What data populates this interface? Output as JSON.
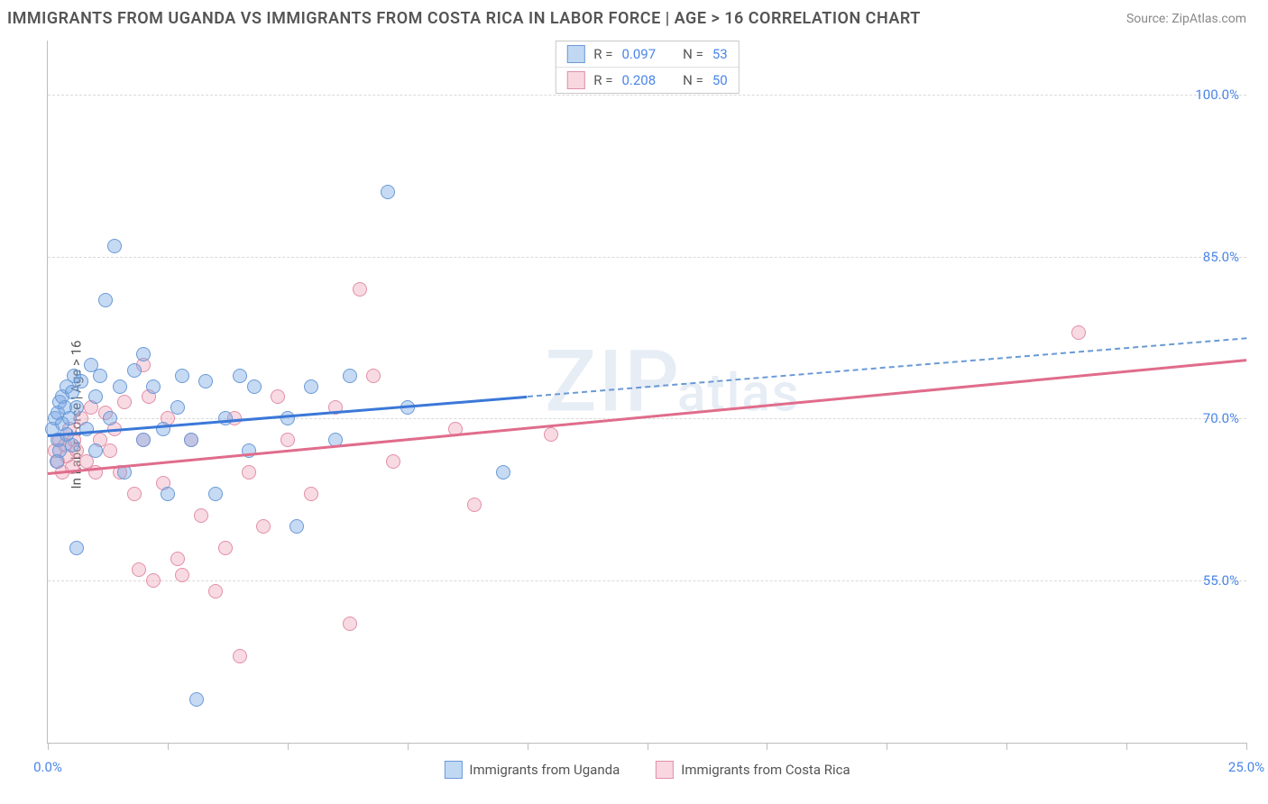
{
  "header": {
    "title": "IMMIGRANTS FROM UGANDA VS IMMIGRANTS FROM COSTA RICA IN LABOR FORCE | AGE > 16 CORRELATION CHART",
    "source": "Source: ZipAtlas.com"
  },
  "chart": {
    "type": "scatter",
    "ylabel": "In Labor Force | Age > 16",
    "watermark": "ZIPatlas",
    "background_color": "#ffffff",
    "grid_color": "#d9d9d9",
    "axis_color": "#bdbdbd",
    "label_fontsize": 15,
    "title_fontsize": 18,
    "xlim": [
      0,
      25
    ],
    "ylim": [
      40,
      105
    ],
    "xticks": [
      0,
      2.5,
      5,
      7.5,
      10,
      12.5,
      15,
      17.5,
      20,
      22.5,
      25
    ],
    "xticks_labeled": {
      "0": "0.0%",
      "25": "25.0%"
    },
    "yticks": [
      55,
      70,
      85,
      100
    ],
    "ytick_labels": [
      "55.0%",
      "70.0%",
      "85.0%",
      "100.0%"
    ],
    "series": {
      "uganda": {
        "label": "Immigrants from Uganda",
        "color_fill": "#76a8e4",
        "color_border": "#6a9ad6",
        "fill_opacity": 0.42,
        "marker_size": 16,
        "r": 0.097,
        "n": 53,
        "trend_color": "#3b78d8",
        "trend_width": 3,
        "trend": {
          "x1": 0,
          "y1": 68.5,
          "x2": 25,
          "y2": 77.5,
          "dash_after_x": 10
        },
        "points": [
          [
            0.1,
            69
          ],
          [
            0.15,
            70
          ],
          [
            0.2,
            68
          ],
          [
            0.2,
            70.5
          ],
          [
            0.25,
            67
          ],
          [
            0.25,
            71.5
          ],
          [
            0.3,
            69.5
          ],
          [
            0.3,
            72
          ],
          [
            0.35,
            71
          ],
          [
            0.4,
            68.5
          ],
          [
            0.4,
            73
          ],
          [
            0.45,
            70
          ],
          [
            0.5,
            67.5
          ],
          [
            0.5,
            72.5
          ],
          [
            0.55,
            74
          ],
          [
            0.6,
            71
          ],
          [
            0.6,
            58
          ],
          [
            0.7,
            73.5
          ],
          [
            0.8,
            69
          ],
          [
            0.9,
            75
          ],
          [
            1.0,
            72
          ],
          [
            1.0,
            67
          ],
          [
            1.1,
            74
          ],
          [
            1.2,
            81
          ],
          [
            1.3,
            70
          ],
          [
            1.4,
            86
          ],
          [
            1.5,
            73
          ],
          [
            1.6,
            65
          ],
          [
            1.8,
            74.5
          ],
          [
            2.0,
            68
          ],
          [
            2.0,
            76
          ],
          [
            2.2,
            73
          ],
          [
            2.4,
            69
          ],
          [
            2.5,
            63
          ],
          [
            2.7,
            71
          ],
          [
            2.8,
            74
          ],
          [
            3.0,
            68
          ],
          [
            3.1,
            44
          ],
          [
            3.3,
            73.5
          ],
          [
            3.5,
            63
          ],
          [
            3.7,
            70
          ],
          [
            4.0,
            74
          ],
          [
            4.2,
            67
          ],
          [
            4.3,
            73
          ],
          [
            5.0,
            70
          ],
          [
            5.2,
            60
          ],
          [
            5.5,
            73
          ],
          [
            6.0,
            68
          ],
          [
            6.3,
            74
          ],
          [
            7.1,
            91
          ],
          [
            7.5,
            71
          ],
          [
            9.5,
            65
          ],
          [
            0.18,
            66
          ]
        ]
      },
      "costarica": {
        "label": "Immigrants from Costa Rica",
        "color_fill": "#efa6bc",
        "color_border": "#e18fa8",
        "fill_opacity": 0.42,
        "marker_size": 16,
        "r": 0.208,
        "n": 50,
        "trend_color": "#e06c8b",
        "trend_width": 3,
        "trend": {
          "x1": 0,
          "y1": 65,
          "x2": 25,
          "y2": 75.5
        },
        "points": [
          [
            0.15,
            67
          ],
          [
            0.2,
            66
          ],
          [
            0.25,
            68
          ],
          [
            0.3,
            65
          ],
          [
            0.35,
            67.5
          ],
          [
            0.4,
            66.5
          ],
          [
            0.45,
            69
          ],
          [
            0.5,
            65.5
          ],
          [
            0.55,
            68
          ],
          [
            0.6,
            67
          ],
          [
            0.7,
            70
          ],
          [
            0.8,
            66
          ],
          [
            0.9,
            71
          ],
          [
            1.0,
            65
          ],
          [
            1.1,
            68
          ],
          [
            1.2,
            70.5
          ],
          [
            1.3,
            67
          ],
          [
            1.4,
            69
          ],
          [
            1.5,
            65
          ],
          [
            1.6,
            71.5
          ],
          [
            1.8,
            63
          ],
          [
            1.9,
            56
          ],
          [
            2.0,
            68
          ],
          [
            2.1,
            72
          ],
          [
            2.2,
            55
          ],
          [
            2.4,
            64
          ],
          [
            2.5,
            70
          ],
          [
            2.7,
            57
          ],
          [
            2.8,
            55.5
          ],
          [
            3.0,
            68
          ],
          [
            3.2,
            61
          ],
          [
            3.5,
            54
          ],
          [
            3.7,
            58
          ],
          [
            3.9,
            70
          ],
          [
            4.0,
            48
          ],
          [
            4.2,
            65
          ],
          [
            4.5,
            60
          ],
          [
            4.8,
            72
          ],
          [
            5.0,
            68
          ],
          [
            5.5,
            63
          ],
          [
            6.0,
            71
          ],
          [
            6.3,
            51
          ],
          [
            6.5,
            82
          ],
          [
            6.8,
            74
          ],
          [
            7.2,
            66
          ],
          [
            8.5,
            69
          ],
          [
            8.9,
            62
          ],
          [
            10.5,
            68.5
          ],
          [
            21.5,
            78
          ],
          [
            2.0,
            75
          ]
        ]
      }
    },
    "legend_top": {
      "r_label": "R =",
      "n_label": "N ="
    },
    "legend_bottom": [
      {
        "key": "uganda"
      },
      {
        "key": "costarica"
      }
    ]
  }
}
